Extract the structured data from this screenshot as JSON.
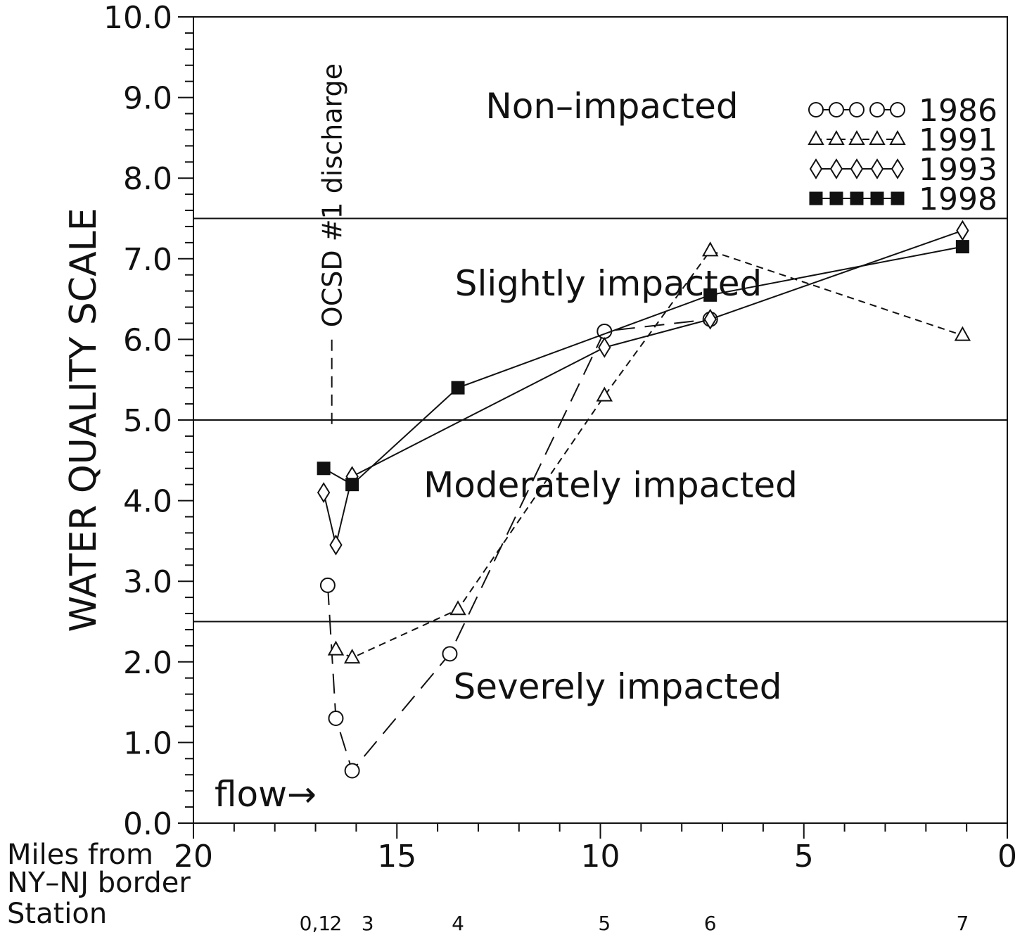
{
  "chart_data": {
    "type": "line",
    "ylabel": "WATER QUALITY SCALE",
    "xlabel_lines": [
      "Miles from",
      "NY–NJ border"
    ],
    "station_row_label": "Station",
    "ylim": [
      0,
      10
    ],
    "xlim": [
      20,
      0
    ],
    "y_ticks": [
      "0.0",
      "1.0",
      "2.0",
      "3.0",
      "4.0",
      "5.0",
      "6.0",
      "7.0",
      "8.0",
      "9.0",
      "10.0"
    ],
    "x_ticks": [
      "20",
      "15",
      "10",
      "5",
      "0"
    ],
    "stations": [
      {
        "label": "0,1",
        "mile": 16.7
      },
      {
        "label": "2",
        "mile": 16.5
      },
      {
        "label": "3",
        "mile": 16.1
      },
      {
        "label": "4",
        "mile": 13.5
      },
      {
        "label": "5",
        "mile": 9.9
      },
      {
        "label": "6",
        "mile": 7.3
      },
      {
        "label": "7",
        "mile": 1.1
      }
    ],
    "zones": [
      {
        "label": "Non–impacted",
        "from": 7.5,
        "to": 10
      },
      {
        "label": "Slightly  impacted",
        "from": 5.0,
        "to": 7.5
      },
      {
        "label": "Moderately  impacted",
        "from": 2.5,
        "to": 5.0
      },
      {
        "label": "Severely  impacted",
        "from": 0,
        "to": 2.5
      }
    ],
    "zone_boundaries": [
      7.5,
      5.0,
      2.5
    ],
    "annotations": {
      "discharge": "OCSD #1 discharge",
      "discharge_mile": 16.6,
      "flow": "flow→"
    },
    "series": [
      {
        "name": "1986",
        "marker": "circle",
        "line": "long-dash",
        "x": [
          16.7,
          16.5,
          16.1,
          13.7,
          9.9,
          7.3
        ],
        "y": [
          2.95,
          1.3,
          0.65,
          2.1,
          6.1,
          6.25
        ]
      },
      {
        "name": "1991",
        "marker": "triangle",
        "line": "short-dash",
        "x": [
          16.5,
          16.1,
          13.5,
          9.9,
          7.3,
          1.1
        ],
        "y": [
          2.15,
          2.05,
          2.65,
          5.3,
          7.1,
          6.05
        ]
      },
      {
        "name": "1993",
        "marker": "diamond",
        "line": "solid",
        "x": [
          16.8,
          16.5,
          16.1,
          9.9,
          7.3,
          1.1
        ],
        "y": [
          4.1,
          3.45,
          4.3,
          5.9,
          6.25,
          7.35
        ]
      },
      {
        "name": "1998",
        "marker": "square",
        "line": "solid",
        "x": [
          16.8,
          16.1,
          13.5,
          7.3,
          1.1
        ],
        "y": [
          4.4,
          4.2,
          5.4,
          6.55,
          7.15
        ]
      }
    ]
  }
}
